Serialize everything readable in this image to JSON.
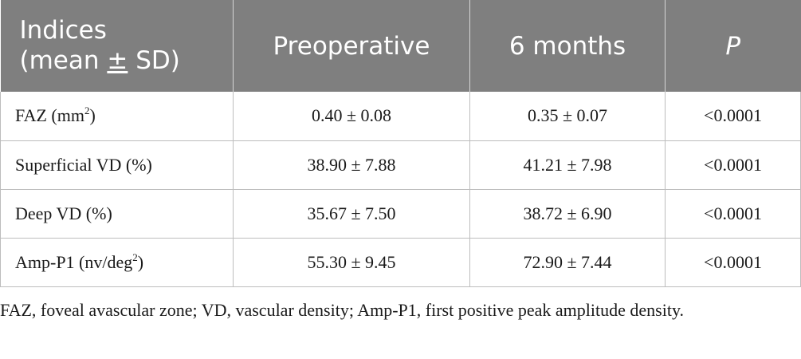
{
  "table": {
    "headers": {
      "indices_line1": "Indices",
      "indices_line2_pre": "(mean ",
      "indices_line2_pm": "±",
      "indices_line2_post": " SD)",
      "preoperative": "Preoperative",
      "six_months": "6 months",
      "p": "P"
    },
    "rows": [
      {
        "label": "FAZ (mm",
        "label_sup": "2",
        "label_post": ")",
        "pre": "0.40 ± 0.08",
        "six": "0.35 ± 0.07",
        "p": "<0.0001"
      },
      {
        "label": "Superficial VD (%)",
        "label_sup": "",
        "label_post": "",
        "pre": "38.90 ± 7.88",
        "six": "41.21 ± 7.98",
        "p": "<0.0001"
      },
      {
        "label": "Deep VD (%)",
        "label_sup": "",
        "label_post": "",
        "pre": "35.67 ± 7.50",
        "six": "38.72 ± 6.90",
        "p": "<0.0001"
      },
      {
        "label": "Amp-P1 (nv/deg",
        "label_sup": "2",
        "label_post": ")",
        "pre": "55.30 ± 9.45",
        "six": "72.90 ± 7.44",
        "p": "<0.0001"
      }
    ]
  },
  "footnote": "FAZ, foveal avascular zone; VD, vascular density; Amp-P1, first positive peak amplitude density."
}
